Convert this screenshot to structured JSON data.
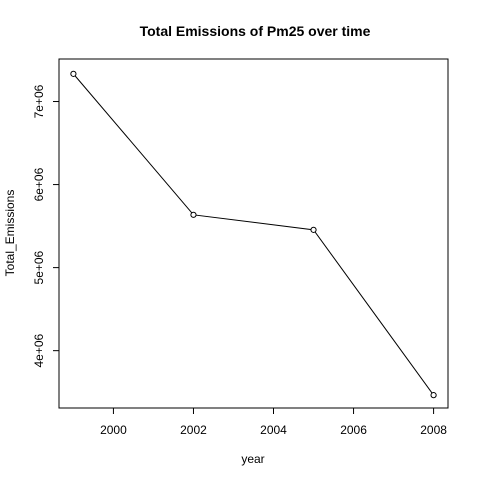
{
  "chart_data": {
    "type": "line",
    "title": "Total Emissions of Pm25 over time",
    "xlabel": "year",
    "ylabel": "Total_Emissions",
    "x": [
      1999,
      2002,
      2005,
      2008
    ],
    "series": [
      {
        "values": [
          7332967,
          5635780,
          5454703,
          3464206
        ]
      }
    ],
    "xlim": [
      1998.64,
      2008.36
    ],
    "ylim": [
      3309573,
      7512000
    ],
    "x_ticks": [
      2000,
      2002,
      2004,
      2006,
      2008
    ],
    "x_tick_labels": [
      "2000",
      "2002",
      "2004",
      "2006",
      "2008"
    ],
    "y_ticks": [
      4000000,
      5000000,
      6000000,
      7000000
    ],
    "y_tick_labels": [
      "4e+06",
      "5e+06",
      "6e+06",
      "7e+06"
    ],
    "grid": false,
    "marker": "open-circle",
    "line_color": "#000000"
  }
}
